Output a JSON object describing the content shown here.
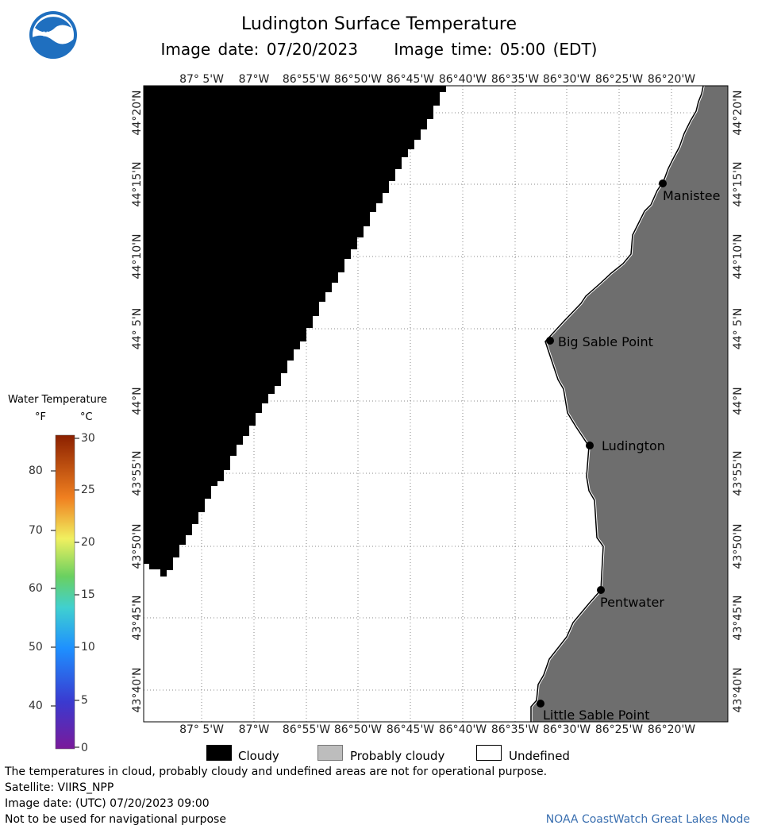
{
  "header": {
    "title": "Ludington Surface Temperature",
    "image_date": "Image date: 07/20/2023",
    "image_time": "Image time: 05:00 (EDT)"
  },
  "map": {
    "lon_labels": [
      "87° 5'W",
      "87°W",
      "86°55'W",
      "86°50'W",
      "86°45'W",
      "86°40'W",
      "86°35'W",
      "86°30'W",
      "86°25'W",
      "86°20'W"
    ],
    "lat_labels": [
      "44°20'N",
      "44°15'N",
      "44°10'N",
      "44° 5'N",
      "44°N",
      "43°55'N",
      "43°50'N",
      "43°45'N",
      "43°40'N"
    ],
    "places": [
      {
        "name": "Manistee"
      },
      {
        "name": "Big Sable Point"
      },
      {
        "name": "Ludington"
      },
      {
        "name": "Pentwater"
      },
      {
        "name": "Little Sable Point"
      }
    ],
    "colors": {
      "cloudy": "#000000",
      "land": "#6e6e6e",
      "water_undefined": "#ffffff"
    }
  },
  "color_scale": {
    "title": "Water Temperature",
    "unit_f": "°F",
    "unit_c": "°C",
    "f_ticks": [
      "80",
      "70",
      "60",
      "50",
      "40"
    ],
    "c_ticks": [
      "30",
      "25",
      "20",
      "15",
      "10",
      "5",
      "0"
    ]
  },
  "key": {
    "cloudy": "Cloudy",
    "probably_cloudy": "Probably cloudy",
    "undefined": "Undefined"
  },
  "footer": {
    "note": "The temperatures in cloud, probably cloudy and undefined areas are not for operational purpose.",
    "satellite": "Satellite: VIIRS_NPP",
    "utc_date": "Image date: (UTC) 07/20/2023  09:00",
    "nav": "Not to be used for navigational purpose",
    "credit": "NOAA CoastWatch Great Lakes Node"
  }
}
